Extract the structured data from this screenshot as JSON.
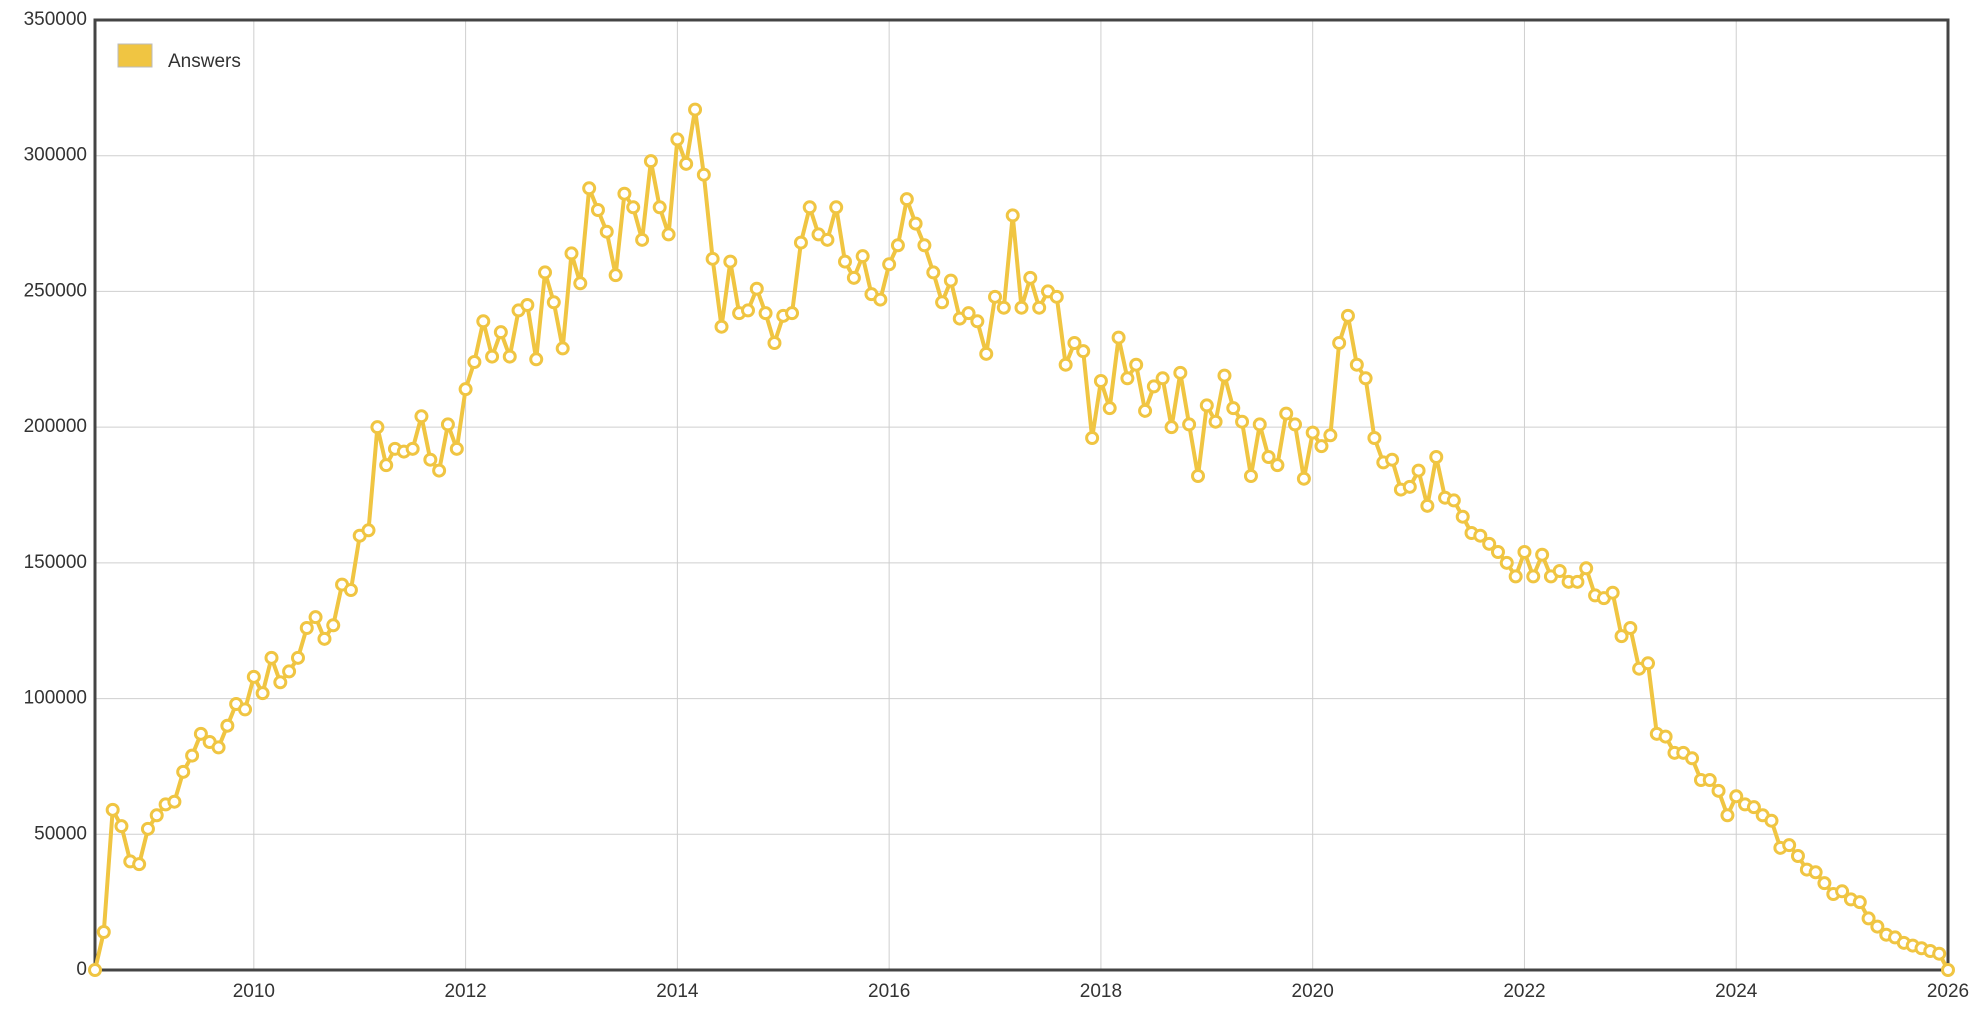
{
  "chart_data": {
    "type": "line",
    "series": [
      {
        "name": "Answers",
        "color": "#f0c542",
        "values": [
          0,
          14000,
          59000,
          53000,
          40000,
          39000,
          52000,
          57000,
          61000,
          62000,
          73000,
          79000,
          87000,
          84000,
          82000,
          90000,
          98000,
          96000,
          108000,
          102000,
          115000,
          106000,
          110000,
          115000,
          126000,
          130000,
          122000,
          127000,
          142000,
          140000,
          160000,
          162000,
          200000,
          186000,
          192000,
          191000,
          192000,
          204000,
          188000,
          184000,
          201000,
          192000,
          214000,
          224000,
          239000,
          226000,
          235000,
          226000,
          243000,
          245000,
          225000,
          257000,
          246000,
          229000,
          264000,
          253000,
          288000,
          280000,
          272000,
          256000,
          286000,
          281000,
          269000,
          298000,
          281000,
          271000,
          306000,
          297000,
          317000,
          293000,
          262000,
          237000,
          261000,
          242000,
          243000,
          251000,
          242000,
          231000,
          241000,
          242000,
          268000,
          281000,
          271000,
          269000,
          281000,
          261000,
          255000,
          263000,
          249000,
          247000,
          260000,
          267000,
          284000,
          275000,
          267000,
          257000,
          246000,
          254000,
          240000,
          242000,
          239000,
          227000,
          248000,
          244000,
          278000,
          244000,
          255000,
          244000,
          250000,
          248000,
          223000,
          231000,
          228000,
          196000,
          217000,
          207000,
          233000,
          218000,
          223000,
          206000,
          215000,
          218000,
          200000,
          220000,
          201000,
          182000,
          208000,
          202000,
          219000,
          207000,
          202000,
          182000,
          201000,
          189000,
          186000,
          205000,
          201000,
          181000,
          198000,
          193000,
          197000,
          231000,
          241000,
          223000,
          218000,
          196000,
          187000,
          188000,
          177000,
          178000,
          184000,
          171000,
          189000,
          174000,
          173000,
          167000,
          161000,
          160000,
          157000,
          154000,
          150000,
          145000,
          154000,
          145000,
          153000,
          145000,
          147000,
          143000,
          143000,
          148000,
          138000,
          137000,
          139000,
          123000,
          126000,
          111000,
          113000,
          87000,
          86000,
          80000,
          80000,
          78000,
          70000,
          70000,
          66000,
          57000,
          64000,
          61000,
          60000,
          57000,
          55000,
          45000,
          46000,
          42000,
          37000,
          36000,
          32000,
          28000,
          29000,
          26000,
          25000,
          19000,
          16000,
          13000,
          12000,
          10000,
          9000,
          8000,
          7000,
          6000,
          0
        ]
      }
    ],
    "x": [
      2008.5,
      2008.583,
      2008.667,
      2008.75,
      2008.833,
      2008.917,
      2009,
      2009.083,
      2009.167,
      2009.25,
      2009.333,
      2009.417,
      2009.5,
      2009.583,
      2009.667,
      2009.75,
      2009.833,
      2009.917,
      2010,
      2010.083,
      2010.167,
      2010.25,
      2010.333,
      2010.417,
      2010.5,
      2010.583,
      2010.667,
      2010.75,
      2010.833,
      2010.917,
      2011,
      2011.083,
      2011.167,
      2011.25,
      2011.333,
      2011.417,
      2011.5,
      2011.583,
      2011.667,
      2011.75,
      2011.833,
      2011.917,
      2012,
      2012.083,
      2012.167,
      2012.25,
      2012.333,
      2012.417,
      2012.5,
      2012.583,
      2012.667,
      2012.75,
      2012.833,
      2012.917,
      2013,
      2013.083,
      2013.167,
      2013.25,
      2013.333,
      2013.417,
      2013.5,
      2013.583,
      2013.667,
      2013.75,
      2013.833,
      2013.917,
      2014,
      2014.083,
      2014.167,
      2014.25,
      2014.333,
      2014.417,
      2014.5,
      2014.583,
      2014.667,
      2014.75,
      2014.833,
      2014.917,
      2015,
      2015.083,
      2015.167,
      2015.25,
      2015.333,
      2015.417,
      2015.5,
      2015.583,
      2015.667,
      2015.75,
      2015.833,
      2015.917,
      2016,
      2016.083,
      2016.167,
      2016.25,
      2016.333,
      2016.417,
      2016.5,
      2016.583,
      2016.667,
      2016.75,
      2016.833,
      2016.917,
      2017,
      2017.083,
      2017.167,
      2017.25,
      2017.333,
      2017.417,
      2017.5,
      2017.583,
      2017.667,
      2017.75,
      2017.833,
      2017.917,
      2018,
      2018.083,
      2018.167,
      2018.25,
      2018.333,
      2018.417,
      2018.5,
      2018.583,
      2018.667,
      2018.75,
      2018.833,
      2018.917,
      2019,
      2019.083,
      2019.167,
      2019.25,
      2019.333,
      2019.417,
      2019.5,
      2019.583,
      2019.667,
      2019.75,
      2019.833,
      2019.917,
      2020,
      2020.083,
      2020.167,
      2020.25,
      2020.333,
      2020.417,
      2020.5,
      2020.583,
      2020.667,
      2020.75,
      2020.833,
      2020.917,
      2021,
      2021.083,
      2021.167,
      2021.25,
      2021.333,
      2021.417,
      2021.5,
      2021.583,
      2021.667,
      2021.75,
      2021.833,
      2021.917,
      2022,
      2022.083,
      2022.167,
      2022.25,
      2022.333,
      2022.417,
      2022.5,
      2022.583,
      2022.667,
      2022.75,
      2022.833,
      2022.917,
      2023,
      2023.083,
      2023.167,
      2023.25,
      2023.333,
      2023.417,
      2023.5,
      2023.583,
      2023.667,
      2023.75,
      2023.833,
      2023.917,
      2024,
      2024.083,
      2024.167,
      2024.25,
      2024.333,
      2024.417,
      2024.5,
      2024.583,
      2024.667,
      2024.75,
      2024.833,
      2024.917,
      2025,
      2025.083,
      2025.167,
      2025.25,
      2025.333,
      2025.417,
      2025.5,
      2025.583,
      2025.667,
      2025.75,
      2025.833,
      2025.917,
      2026
    ],
    "xlim": [
      2008.5,
      2026
    ],
    "xticks": [
      2010,
      2012,
      2014,
      2016,
      2018,
      2020,
      2022,
      2024,
      2026
    ],
    "ylim": [
      0,
      350000
    ],
    "yticks": [
      0,
      50000,
      100000,
      150000,
      200000,
      250000,
      300000,
      350000
    ],
    "grid": true,
    "legend": "upper left"
  }
}
